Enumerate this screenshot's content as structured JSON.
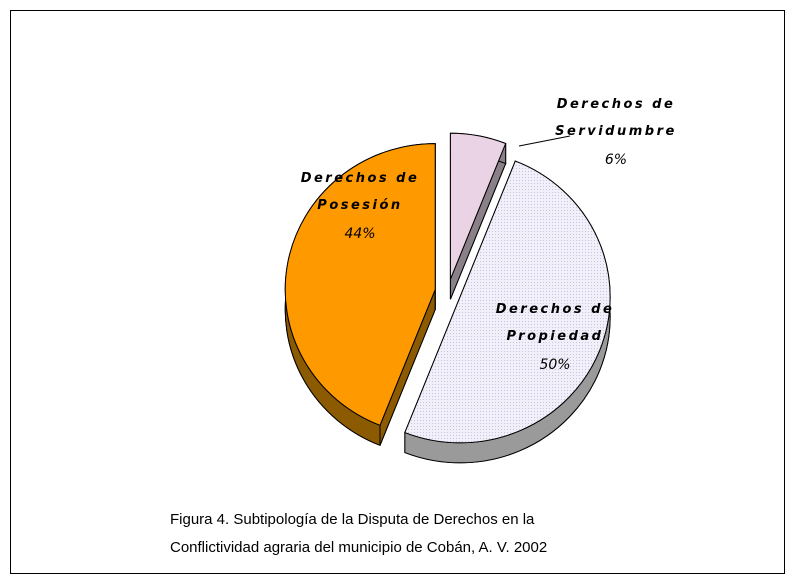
{
  "chart_data": {
    "type": "pie",
    "categories": [
      "Derechos de Posesión",
      "Derechos de Servidumbre",
      "Derechos de Propiedad"
    ],
    "values": [
      44,
      6,
      50
    ],
    "value_labels": [
      "44%",
      "6%",
      "50%"
    ],
    "colors": [
      "#ff9900",
      "#ead3e4",
      "#f1eff9"
    ],
    "caption": [
      "Figura 4. Subtipología de la Disputa de Derechos en la",
      "Conflictividad  agraria del municipio de Cobán,  A. V. 2002"
    ]
  }
}
